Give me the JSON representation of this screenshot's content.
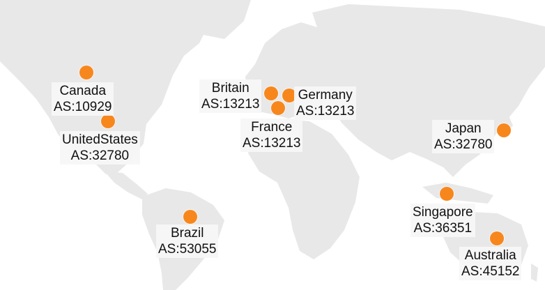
{
  "map": {
    "land_color": "#e8e8e8",
    "background_color": "#ffffff",
    "marker_color": "#f7871d",
    "locations": [
      {
        "id": "canada",
        "country": "Canada",
        "as": "AS:10929"
      },
      {
        "id": "united-states",
        "country": "UnitedStates",
        "as": "AS:32780"
      },
      {
        "id": "britain",
        "country": "Britain",
        "as": "AS:13213"
      },
      {
        "id": "germany",
        "country": "Germany",
        "as": "AS:13213"
      },
      {
        "id": "france",
        "country": "France",
        "as": "AS:13213"
      },
      {
        "id": "japan",
        "country": "Japan",
        "as": "AS:32780"
      },
      {
        "id": "brazil",
        "country": "Brazil",
        "as": "AS:53055"
      },
      {
        "id": "singapore",
        "country": "Singapore",
        "as": "AS:36351"
      },
      {
        "id": "australia",
        "country": "Australia",
        "as": "AS:45152"
      }
    ]
  }
}
